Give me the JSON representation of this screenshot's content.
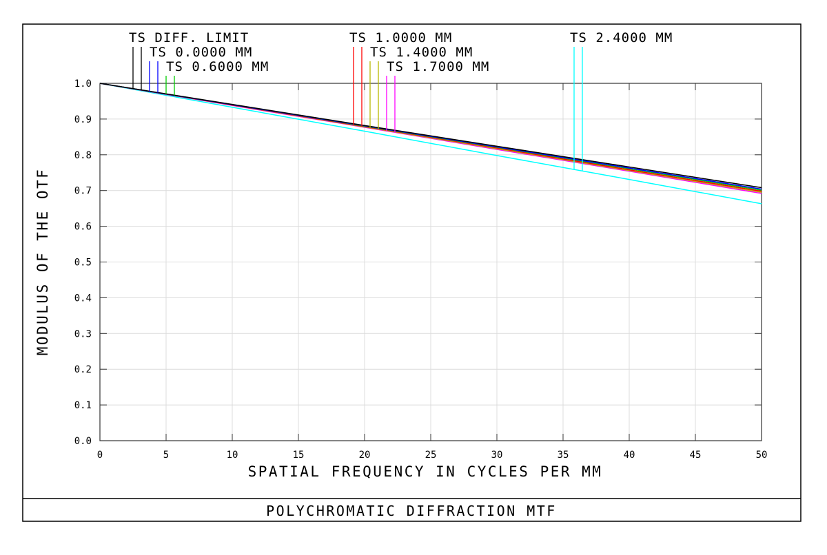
{
  "chart_data": {
    "type": "line",
    "title": "POLYCHROMATIC DIFFRACTION MTF",
    "xlabel": "SPATIAL FREQUENCY IN CYCLES PER MM",
    "ylabel": "MODULUS OF THE OTF",
    "xlim": [
      0,
      50
    ],
    "ylim": [
      0,
      1
    ],
    "grid": true,
    "xticks": [
      "0",
      "5",
      "10",
      "15",
      "20",
      "25",
      "30",
      "35",
      "40",
      "45",
      "50"
    ],
    "yticks": [
      "0.0",
      "0.1",
      "0.2",
      "0.3",
      "0.4",
      "0.5",
      "0.6",
      "0.7",
      "0.8",
      "0.9",
      "1.0"
    ],
    "x": [
      0,
      10,
      20,
      30,
      40,
      50
    ],
    "series": [
      {
        "name": "TS DIFF. LIMIT",
        "color": "#000000",
        "values": [
          1.0,
          0.941,
          0.882,
          0.824,
          0.766,
          0.708
        ]
      },
      {
        "name": "TS 0.0000 MM",
        "color": "#0000ff",
        "values": [
          1.0,
          0.94,
          0.881,
          0.822,
          0.763,
          0.704
        ]
      },
      {
        "name": "TS 0.6000 MM",
        "color": "#00cc00",
        "values": [
          1.0,
          0.94,
          0.88,
          0.821,
          0.761,
          0.701
        ]
      },
      {
        "name": "TS 1.0000 MM",
        "color": "#ff0000",
        "values": [
          1.0,
          0.939,
          0.879,
          0.819,
          0.758,
          0.698
        ]
      },
      {
        "name": "TS 1.4000 MM",
        "color": "#b8b800",
        "values": [
          1.0,
          0.939,
          0.878,
          0.817,
          0.756,
          0.695
        ]
      },
      {
        "name": "TS 1.7000 MM",
        "color": "#ff00ff",
        "values": [
          1.0,
          0.938,
          0.877,
          0.815,
          0.754,
          0.692
        ]
      },
      {
        "name": "TS 2.4000 MM",
        "color": "#00ffff",
        "values": [
          1.0,
          0.933,
          0.866,
          0.798,
          0.731,
          0.663
        ]
      }
    ]
  }
}
